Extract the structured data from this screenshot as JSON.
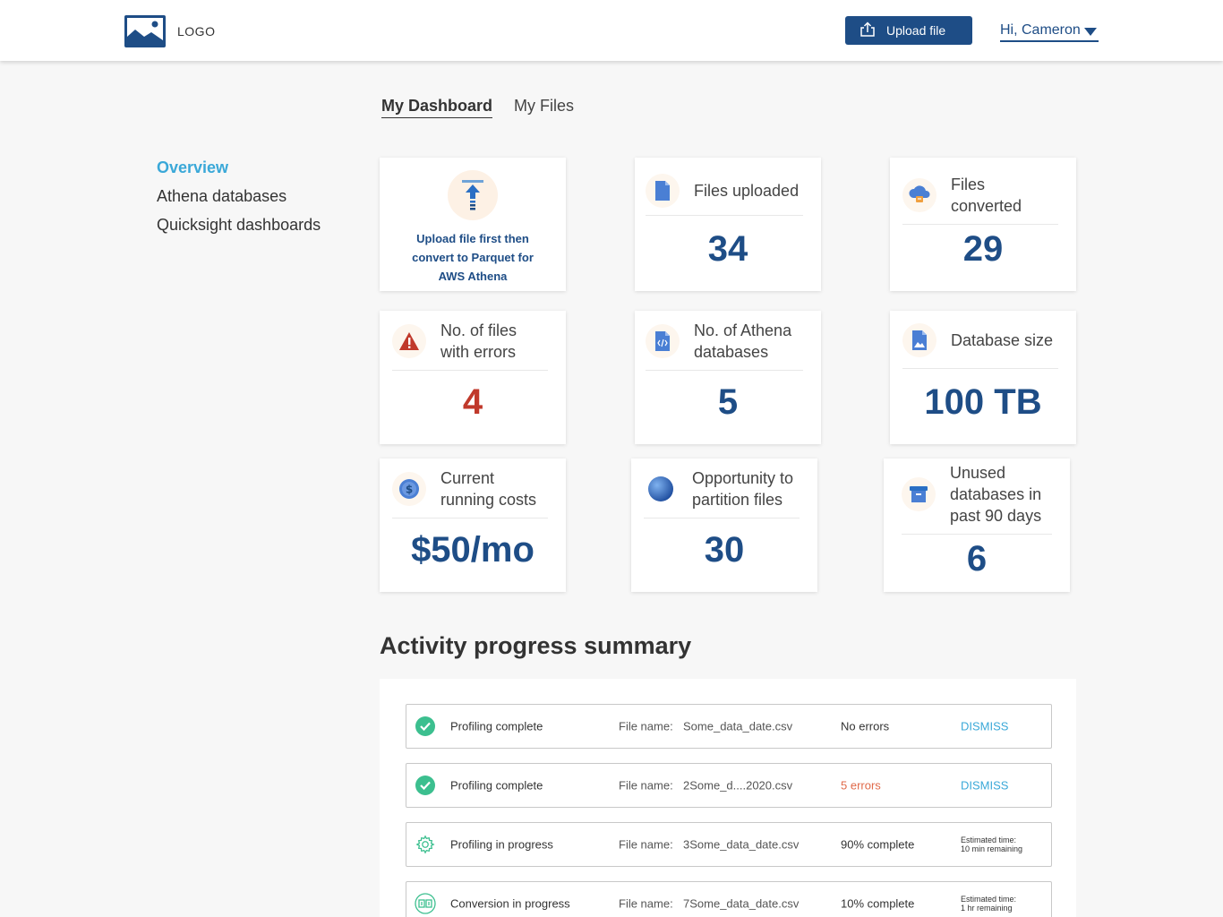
{
  "header": {
    "logo_text": "LOGO",
    "upload_button": "Upload file",
    "user_greeting": "Hi, Cameron"
  },
  "tabs": [
    {
      "label": "My Dashboard",
      "active": true
    },
    {
      "label": "My Files",
      "active": false
    }
  ],
  "sidebar": {
    "items": [
      {
        "label": "Overview",
        "active": true
      },
      {
        "label": "Athena databases",
        "active": false
      },
      {
        "label": "Quicksight dashboards",
        "active": false
      }
    ]
  },
  "cards": {
    "upload_prompt": {
      "text": "Upload file first then convert to Parquet for AWS Athena",
      "icon": "upload-arrow-icon"
    },
    "files_uploaded": {
      "title": "Files uploaded",
      "value": "34",
      "icon": "file-icon"
    },
    "files_converted": {
      "title": "Files converted",
      "value": "29",
      "icon": "cloud-convert-icon"
    },
    "files_errors": {
      "title": "No. of files with errors",
      "value": "4",
      "icon": "warning-icon"
    },
    "athena_dbs": {
      "title": "No. of Athena databases",
      "value": "5",
      "icon": "code-file-icon"
    },
    "db_size": {
      "title": "Database size",
      "value": "100 TB",
      "icon": "image-file-icon"
    },
    "running_costs": {
      "title": "Current running costs",
      "value": "$50/mo",
      "icon": "dollar-coin-icon"
    },
    "partition": {
      "title": "Opportunity to partition files",
      "value": "30",
      "icon": "globe-icon"
    },
    "unused_dbs": {
      "title": "Unused databases in past 90 days",
      "value": "6",
      "icon": "archive-box-icon"
    }
  },
  "activity": {
    "title": "Activity progress summary",
    "file_name_label": "File name:",
    "rows": [
      {
        "status": "Profiling complete",
        "file": "Some_data_date.csv",
        "result": "No errors",
        "action": "DISMISS",
        "icon": "check-circle-icon"
      },
      {
        "status": "Profiling complete",
        "file": "2Some_d....2020.csv",
        "result": "5 errors",
        "action": "DISMISS",
        "icon": "check-circle-icon"
      },
      {
        "status": "Profiling in progress",
        "file": "3Some_data_date.csv",
        "result": "90% complete",
        "est_label": "Estimated time:",
        "est_value": "10 min remaining",
        "icon": "gear-icon"
      },
      {
        "status": "Conversion in progress",
        "file": "7Some_data_date.csv",
        "result": "10% complete",
        "est_label": "Estimated time:",
        "est_value": "1 hr remaining",
        "icon": "conversion-icon"
      }
    ]
  },
  "colors": {
    "brand": "#1e4d86",
    "accent": "#3aa8d8",
    "error": "#c0392b",
    "success": "#3cbf8f"
  }
}
